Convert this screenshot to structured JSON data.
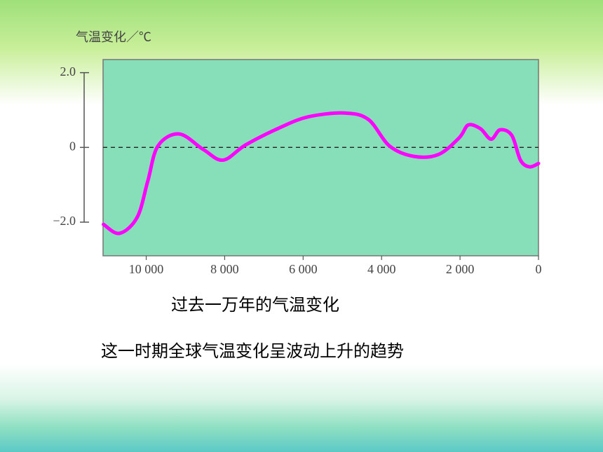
{
  "chart_data": {
    "type": "line",
    "y_axis_label": "气温变化／℃",
    "caption": "过去一万年的气温变化",
    "note": "这一时期全球气温变化呈波动上升的趋势",
    "x": [
      11090,
      10680,
      10230,
      9960,
      9700,
      9160,
      8540,
      8040,
      7460,
      6570,
      5860,
      4960,
      4340,
      3800,
      3180,
      2550,
      2020,
      1790,
      1480,
      1210,
      980,
      680,
      460,
      230,
      0
    ],
    "series": [
      {
        "color": "#ff00ff",
        "values": [
          -2.06,
          -2.3,
          -1.87,
          -0.9,
          0.04,
          0.36,
          -0.06,
          -0.34,
          0.07,
          0.54,
          0.82,
          0.92,
          0.75,
          0.04,
          -0.24,
          -0.19,
          0.26,
          0.6,
          0.5,
          0.22,
          0.47,
          0.32,
          -0.34,
          -0.52,
          -0.43
        ]
      }
    ],
    "xlim": [
      11100,
      0
    ],
    "xticks": [
      {
        "value": 10000,
        "label": "10 000"
      },
      {
        "value": 8000,
        "label": "8 000"
      },
      {
        "value": 6000,
        "label": "6 000"
      },
      {
        "value": 4000,
        "label": "4 000"
      },
      {
        "value": 2000,
        "label": "2 000"
      },
      0
    ],
    "ylim": [
      -2.9,
      2.35
    ],
    "yticks": [
      {
        "value": 2,
        "label": "2.0"
      },
      0,
      {
        "value": -2,
        "label": "−2.0"
      }
    ],
    "reference_line": 0,
    "plot_color": "#86dfb8"
  }
}
